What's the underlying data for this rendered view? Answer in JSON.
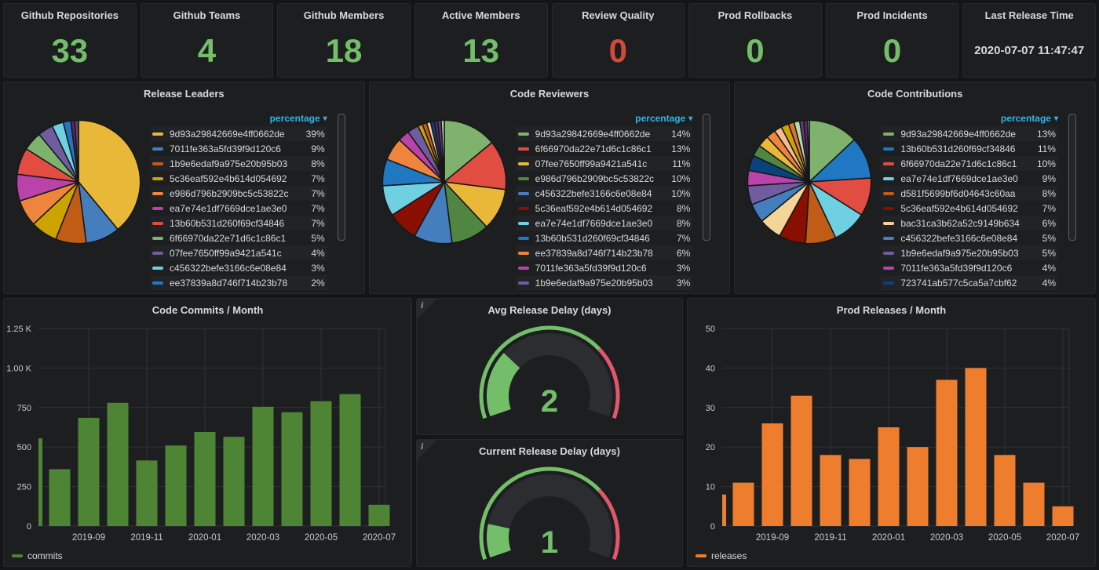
{
  "stats": [
    {
      "title": "Github Repositories",
      "value": "33",
      "color": "#73bf69"
    },
    {
      "title": "Github Teams",
      "value": "4",
      "color": "#73bf69"
    },
    {
      "title": "Github Members",
      "value": "18",
      "color": "#73bf69"
    },
    {
      "title": "Active Members",
      "value": "13",
      "color": "#73bf69"
    },
    {
      "title": "Review Quality",
      "value": "0",
      "color": "#d44a3a"
    },
    {
      "title": "Prod Rollbacks",
      "value": "0",
      "color": "#73bf69"
    },
    {
      "title": "Prod Incidents",
      "value": "0",
      "color": "#73bf69"
    },
    {
      "title": "Last Release Time",
      "value": "2020-07-07 11:47:47",
      "color": "#d8d9da",
      "small": true
    }
  ],
  "chart_data": [
    {
      "type": "pie",
      "title": "Release Leaders",
      "legend_header": "percentage",
      "legend_sorted": "desc",
      "rows": [
        {
          "label": "9d93a29842669e4ff0662de",
          "value": 39,
          "pct": "39%",
          "color": "#eab839"
        },
        {
          "label": "7011fe363a5fd39f9d120c6",
          "value": 9,
          "pct": "9%",
          "color": "#447ebc"
        },
        {
          "label": "1b9e6edaf9a975e20b95b03",
          "value": 8,
          "pct": "8%",
          "color": "#c15c17"
        },
        {
          "label": "5c36eaf592e4b614d054692",
          "value": 7,
          "pct": "7%",
          "color": "#cca300"
        },
        {
          "label": "e986d796b2909bc5c53822c",
          "value": 7,
          "pct": "7%",
          "color": "#ef843c"
        },
        {
          "label": "ea7e74e1df7669dce1ae3e0",
          "value": 7,
          "pct": "7%",
          "color": "#ba43a9"
        },
        {
          "label": "13b60b531d260f69cf34846",
          "value": 7,
          "pct": "7%",
          "color": "#e24d42"
        },
        {
          "label": "6f66970da22e71d6c1c86c1",
          "value": 5,
          "pct": "5%",
          "color": "#7eb26d"
        },
        {
          "label": "07fee7650ff99a9421a541c",
          "value": 4,
          "pct": "4%",
          "color": "#705da0"
        },
        {
          "label": "c456322befe3166c6e08e84",
          "value": 3,
          "pct": "3%",
          "color": "#6ed0e0"
        },
        {
          "label": "ee37839a8d746f714b23b78",
          "value": 2,
          "pct": "2%",
          "color": "#1f78c1"
        }
      ],
      "extra_slices": [
        {
          "value": 1,
          "color": "#6d1f62"
        },
        {
          "value": 1,
          "color": "#584477"
        }
      ]
    },
    {
      "type": "pie",
      "title": "Code Reviewers",
      "legend_header": "percentage",
      "legend_sorted": "desc",
      "rows": [
        {
          "label": "9d93a29842669e4ff0662de",
          "value": 14,
          "pct": "14%",
          "color": "#7eb26d"
        },
        {
          "label": "6f66970da22e71d6c1c86c1",
          "value": 13,
          "pct": "13%",
          "color": "#e24d42"
        },
        {
          "label": "07fee7650ff99a9421a541c",
          "value": 11,
          "pct": "11%",
          "color": "#eab839"
        },
        {
          "label": "e986d796b2909bc5c53822c",
          "value": 10,
          "pct": "10%",
          "color": "#508642"
        },
        {
          "label": "c456322befe3166c6e08e84",
          "value": 10,
          "pct": "10%",
          "color": "#447ebc"
        },
        {
          "label": "5c36eaf592e4b614d054692",
          "value": 8,
          "pct": "8%",
          "color": "#890f02"
        },
        {
          "label": "ea7e74e1df7669dce1ae3e0",
          "value": 8,
          "pct": "8%",
          "color": "#6ed0e0"
        },
        {
          "label": "13b60b531d260f69cf34846",
          "value": 7,
          "pct": "7%",
          "color": "#1f78c1"
        },
        {
          "label": "ee37839a8d746f714b23b78",
          "value": 6,
          "pct": "6%",
          "color": "#ef843c"
        },
        {
          "label": "7011fe363a5fd39f9d120c6",
          "value": 3,
          "pct": "3%",
          "color": "#ba43a9"
        },
        {
          "label": "1b9e6edaf9a975e20b95b03",
          "value": 3,
          "pct": "3%",
          "color": "#705da0"
        }
      ],
      "extra_slices": [
        {
          "value": 1.2,
          "color": "#cca300"
        },
        {
          "value": 1.2,
          "color": "#c15c17"
        },
        {
          "value": 1,
          "color": "#f4d598"
        },
        {
          "value": 1,
          "color": "#0a437c"
        },
        {
          "value": 0.9,
          "color": "#6d1f62"
        },
        {
          "value": 0.9,
          "color": "#584477"
        },
        {
          "value": 0.8,
          "color": "#b7dbab"
        }
      ]
    },
    {
      "type": "pie",
      "title": "Code Contributions",
      "legend_header": "percentage",
      "legend_sorted": "desc",
      "rows": [
        {
          "label": "9d93a29842669e4ff0662de",
          "value": 13,
          "pct": "13%",
          "color": "#7eb26d"
        },
        {
          "label": "13b60b531d260f69cf34846",
          "value": 11,
          "pct": "11%",
          "color": "#1f78c1"
        },
        {
          "label": "6f66970da22e71d6c1c86c1",
          "value": 10,
          "pct": "10%",
          "color": "#e24d42"
        },
        {
          "label": "ea7e74e1df7669dce1ae3e0",
          "value": 9,
          "pct": "9%",
          "color": "#6ed0e0"
        },
        {
          "label": "d581f5699bf6d04643c60aa",
          "value": 8,
          "pct": "8%",
          "color": "#c15c17"
        },
        {
          "label": "5c36eaf592e4b614d054692",
          "value": 7,
          "pct": "7%",
          "color": "#890f02"
        },
        {
          "label": "bac31ca3b62a52c9149b634",
          "value": 6,
          "pct": "6%",
          "color": "#f4d598"
        },
        {
          "label": "c456322befe3166c6e08e84",
          "value": 5,
          "pct": "5%",
          "color": "#447ebc"
        },
        {
          "label": "1b9e6edaf9a975e20b95b03",
          "value": 5,
          "pct": "5%",
          "color": "#705da0"
        },
        {
          "label": "7011fe363a5fd39f9d120c6",
          "value": 4,
          "pct": "4%",
          "color": "#ba43a9"
        },
        {
          "label": "723741ab577c5ca5a7cbf62",
          "value": 4,
          "pct": "4%",
          "color": "#0a437c"
        }
      ],
      "extra_slices": [
        {
          "value": 3,
          "color": "#508642"
        },
        {
          "value": 3,
          "color": "#eab839"
        },
        {
          "value": 2.5,
          "color": "#ef843c"
        },
        {
          "value": 2,
          "color": "#f9ba8f"
        },
        {
          "value": 2,
          "color": "#cca300"
        },
        {
          "value": 1.5,
          "color": "#e0752d"
        },
        {
          "value": 1.5,
          "color": "#b7dbab"
        },
        {
          "value": 1,
          "color": "#584477"
        },
        {
          "value": 1,
          "color": "#6d1f62"
        },
        {
          "value": 0.5,
          "color": "#70dbed"
        }
      ]
    },
    {
      "type": "bar",
      "title": "Code Commits / Month",
      "series": "commits",
      "color": "#4d8535",
      "categories": [
        "2019-07",
        "2019-08",
        "2019-09",
        "2019-10",
        "2019-11",
        "2019-12",
        "2020-01",
        "2020-02",
        "2020-03",
        "2020-04",
        "2020-05",
        "2020-06",
        "2020-07"
      ],
      "values": [
        555,
        360,
        685,
        780,
        415,
        510,
        595,
        565,
        755,
        720,
        790,
        835,
        135
      ],
      "first_bar_clipped": true,
      "x_tick_labels": [
        "2019-09",
        "2019-11",
        "2020-01",
        "2020-03",
        "2020-05",
        "2020-07"
      ],
      "x_tick_indices": [
        2,
        4,
        6,
        8,
        10,
        12
      ],
      "y_ticks": [
        "0",
        "250",
        "500",
        "750",
        "1.00 K",
        "1.25 K"
      ],
      "ylim": [
        0,
        1250
      ],
      "grid": true,
      "legend_position": "bottom-left"
    },
    {
      "type": "gauge",
      "title": "Avg Release Delay (days)",
      "value": 2,
      "value_text": "2",
      "min": 0,
      "max": 7,
      "threshold": 5,
      "green": "#73bf69",
      "red": "#e4566b"
    },
    {
      "type": "gauge",
      "title": "Current Release Delay (days)",
      "value": 1,
      "value_text": "1",
      "min": 0,
      "max": 7,
      "threshold": 5,
      "green": "#73bf69",
      "red": "#e4566b"
    },
    {
      "type": "bar",
      "title": "Prod Releases / Month",
      "series": "releases",
      "color": "#ee7d2e",
      "categories": [
        "2019-07",
        "2019-08",
        "2019-09",
        "2019-10",
        "2019-11",
        "2019-12",
        "2020-01",
        "2020-02",
        "2020-03",
        "2020-04",
        "2020-05",
        "2020-06",
        "2020-07"
      ],
      "values": [
        8,
        11,
        26,
        33,
        18,
        17,
        25,
        20,
        37,
        40,
        18,
        11,
        5
      ],
      "first_bar_clipped": true,
      "x_tick_labels": [
        "2019-09",
        "2019-11",
        "2020-01",
        "2020-03",
        "2020-05",
        "2020-07"
      ],
      "x_tick_indices": [
        2,
        4,
        6,
        8,
        10,
        12
      ],
      "y_ticks": [
        "0",
        "10",
        "20",
        "30",
        "40",
        "50"
      ],
      "ylim": [
        0,
        50
      ],
      "grid": true,
      "legend_position": "bottom-left"
    }
  ]
}
